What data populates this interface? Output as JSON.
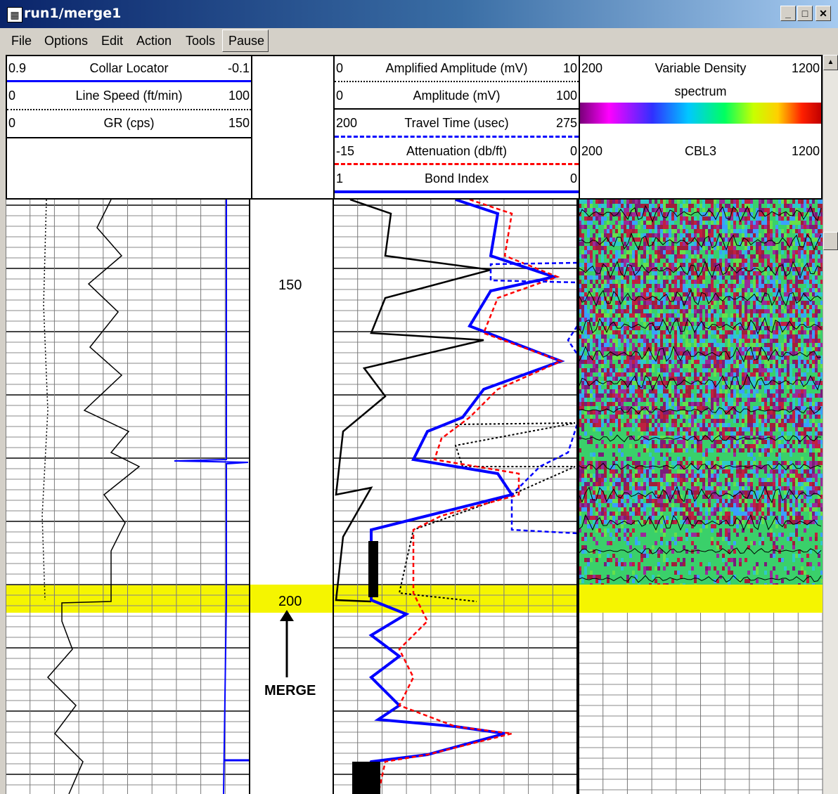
{
  "window": {
    "title": "run1/merge1",
    "icon": "app-grid-icon",
    "minimize": "_",
    "maximize": "□",
    "close": "✕"
  },
  "menu": {
    "items": [
      "File",
      "Options",
      "Edit",
      "Action",
      "Tools",
      "Pause"
    ]
  },
  "tracks": {
    "left": [
      {
        "min": "0.9",
        "name": "Collar Locator",
        "max": "-0.1",
        "line": "solid-blue"
      },
      {
        "min": "0",
        "name": "Line Speed (ft/min)",
        "max": "100",
        "line": "dotted-black"
      },
      {
        "min": "0",
        "name": "GR (cps)",
        "max": "150",
        "line": "solid-black"
      }
    ],
    "middle": [
      {
        "min": "0",
        "name": "Amplified Amplitude (mV)",
        "max": "10",
        "line": "dotted-black"
      },
      {
        "min": "0",
        "name": "Amplitude (mV)",
        "max": "100",
        "line": "solid-black"
      },
      {
        "min": "200",
        "name": "Travel Time (usec)",
        "max": "275",
        "line": "dashed-blue"
      },
      {
        "min": "-15",
        "name": "Attenuation (db/ft)",
        "max": "0",
        "line": "dashed-red"
      },
      {
        "min": "1",
        "name": "Bond Index",
        "max": "0",
        "line": "solid-blue"
      }
    ],
    "right": [
      {
        "min": "200",
        "name": "Variable Density",
        "max": "1200"
      },
      {
        "min": "",
        "name": "spectrum",
        "max": ""
      },
      {
        "min": "200",
        "name": "CBL3",
        "max": "1200"
      }
    ]
  },
  "depth": {
    "labels": [
      "150",
      "200"
    ],
    "merge_label": "MERGE"
  },
  "colors": {
    "highlight": "#f5f500",
    "bond_index": "#0000ff",
    "attenuation": "#ff0000",
    "travel_time": "#0000ff",
    "grid": "#7a7a7a"
  }
}
